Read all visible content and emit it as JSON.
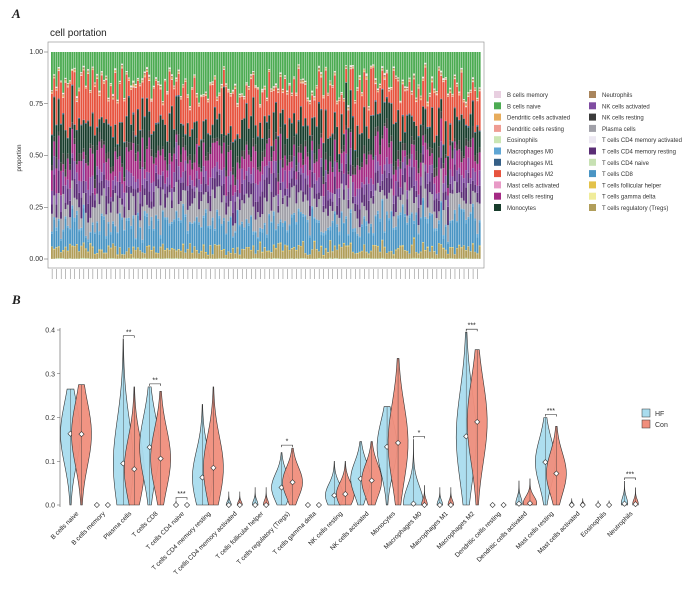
{
  "panelA": {
    "letter": "A",
    "title": "cell portation",
    "ylabel": "proportion",
    "yticks": [
      "0.00",
      "0.25",
      "0.50",
      "0.75",
      "1.00"
    ]
  },
  "panelB": {
    "letter": "B",
    "yticks": [
      "0.0",
      "0.1",
      "0.2",
      "0.3",
      "0.4"
    ]
  },
  "chart_data": [
    {
      "type": "bar",
      "stacked": true,
      "title": "cell portation",
      "xlabel": "",
      "ylabel": "proportion",
      "ylim": [
        0,
        1
      ],
      "n_samples": 190,
      "legend_position": "right",
      "series": [
        {
          "name": "B cells memory",
          "color": "#e8cfe0",
          "mean": 0.002
        },
        {
          "name": "B cells naive",
          "color": "#4cab52",
          "mean": 0.16
        },
        {
          "name": "Dendritic cells activated",
          "color": "#e7ac5c",
          "mean": 0.005
        },
        {
          "name": "Dendritic cells resting",
          "color": "#ef9c93",
          "mean": 0.001
        },
        {
          "name": "Eosinophils",
          "color": "#cbe6b4",
          "mean": 0.001
        },
        {
          "name": "Macrophages M0",
          "color": "#5fa6d4",
          "mean": 0.01
        },
        {
          "name": "Macrophages M1",
          "color": "#355f86",
          "mean": 0.004
        },
        {
          "name": "Macrophages M2",
          "color": "#e7533e",
          "mean": 0.17
        },
        {
          "name": "Mast cells activated",
          "color": "#e89ac6",
          "mean": 0.001
        },
        {
          "name": "Mast cells resting",
          "color": "#a42a84",
          "mean": 0.09
        },
        {
          "name": "Monocytes",
          "color": "#183d2c",
          "mean": 0.14
        },
        {
          "name": "Neutrophils",
          "color": "#a9855c",
          "mean": 0.005
        },
        {
          "name": "NK cells activated",
          "color": "#7f4ca1",
          "mean": 0.06
        },
        {
          "name": "NK cells resting",
          "color": "#3b3b3b",
          "mean": 0.03
        },
        {
          "name": "Plasma cells",
          "color": "#a0a0a8",
          "mean": 0.1
        },
        {
          "name": "T cells CD4 memory activated",
          "color": "#ece8f2",
          "mean": 0.003
        },
        {
          "name": "T cells CD4 memory resting",
          "color": "#5a2d75",
          "mean": 0.07
        },
        {
          "name": "T cells CD4 naive",
          "color": "#c7e1b3",
          "mean": 0.003
        },
        {
          "name": "T cells CD8",
          "color": "#4a95c4",
          "mean": 0.12
        },
        {
          "name": "T cells follicular helper",
          "color": "#e3c24a",
          "mean": 0.003
        },
        {
          "name": "T cells gamma delta",
          "color": "#f0ec9a",
          "mean": 0.001
        },
        {
          "name": "T cells regulatory (Tregs)",
          "color": "#b19e5a",
          "mean": 0.045
        }
      ]
    },
    {
      "type": "violin",
      "xlabel": "",
      "ylabel": "",
      "ylim": [
        0,
        0.42
      ],
      "legend_position": "right",
      "groups": [
        {
          "name": "HF",
          "color": "#a9dcee"
        },
        {
          "name": "Con",
          "color": "#f08e7c"
        }
      ],
      "categories": [
        {
          "name": "B cells naive",
          "HF": {
            "min": 0.0,
            "max": 0.265,
            "median": 0.163
          },
          "Con": {
            "min": 0.0,
            "max": 0.275,
            "median": 0.162
          },
          "sig": ""
        },
        {
          "name": "B cells memory",
          "HF": {
            "min": 0.0,
            "max": 0.0,
            "median": 0.0
          },
          "Con": {
            "min": 0.0,
            "max": 0.0,
            "median": 0.0
          },
          "sig": ""
        },
        {
          "name": "Plasma cells",
          "HF": {
            "min": 0.0,
            "max": 0.38,
            "median": 0.095
          },
          "Con": {
            "min": 0.0,
            "max": 0.27,
            "median": 0.082
          },
          "sig": "**"
        },
        {
          "name": "T cells CD8",
          "HF": {
            "min": 0.0,
            "max": 0.27,
            "median": 0.132
          },
          "Con": {
            "min": 0.0,
            "max": 0.26,
            "median": 0.106
          },
          "sig": "**"
        },
        {
          "name": "T cells CD4 naive",
          "HF": {
            "min": 0.0,
            "max": 0.01,
            "median": 0.0
          },
          "Con": {
            "min": 0.0,
            "max": 0.005,
            "median": 0.0
          },
          "sig": "***"
        },
        {
          "name": "T cells CD4 memory resting",
          "HF": {
            "min": 0.0,
            "max": 0.23,
            "median": 0.063
          },
          "Con": {
            "min": 0.0,
            "max": 0.27,
            "median": 0.085
          },
          "sig": ""
        },
        {
          "name": "T cells CD4 memory activated",
          "HF": {
            "min": 0.0,
            "max": 0.03,
            "median": 0.0
          },
          "Con": {
            "min": 0.0,
            "max": 0.03,
            "median": 0.0
          },
          "sig": ""
        },
        {
          "name": "T cells follicular helper",
          "HF": {
            "min": 0.0,
            "max": 0.04,
            "median": 0.0
          },
          "Con": {
            "min": 0.0,
            "max": 0.04,
            "median": 0.0
          },
          "sig": ""
        },
        {
          "name": "T cells regulatory (Tregs)",
          "HF": {
            "min": 0.0,
            "max": 0.12,
            "median": 0.04
          },
          "Con": {
            "min": 0.0,
            "max": 0.13,
            "median": 0.052
          },
          "sig": "*"
        },
        {
          "name": "T cells gamma delta",
          "HF": {
            "min": 0.0,
            "max": 0.0,
            "median": 0.0
          },
          "Con": {
            "min": 0.0,
            "max": 0.0,
            "median": 0.0
          },
          "sig": ""
        },
        {
          "name": "NK cells resting",
          "HF": {
            "min": 0.0,
            "max": 0.1,
            "median": 0.022
          },
          "Con": {
            "min": 0.0,
            "max": 0.1,
            "median": 0.025
          },
          "sig": ""
        },
        {
          "name": "NK cells activated",
          "HF": {
            "min": 0.0,
            "max": 0.145,
            "median": 0.06
          },
          "Con": {
            "min": 0.0,
            "max": 0.145,
            "median": 0.056
          },
          "sig": ""
        },
        {
          "name": "Monocytes",
          "HF": {
            "min": 0.0,
            "max": 0.225,
            "median": 0.133
          },
          "Con": {
            "min": 0.0,
            "max": 0.335,
            "median": 0.142
          },
          "sig": ""
        },
        {
          "name": "Macrophages M0",
          "HF": {
            "min": 0.0,
            "max": 0.15,
            "median": 0.003
          },
          "Con": {
            "min": 0.0,
            "max": 0.045,
            "median": 0.0
          },
          "sig": "*"
        },
        {
          "name": "Macrophages M1",
          "HF": {
            "min": 0.0,
            "max": 0.04,
            "median": 0.0
          },
          "Con": {
            "min": 0.0,
            "max": 0.04,
            "median": 0.0
          },
          "sig": ""
        },
        {
          "name": "Macrophages M2",
          "HF": {
            "min": 0.0,
            "max": 0.395,
            "median": 0.157
          },
          "Con": {
            "min": 0.0,
            "max": 0.355,
            "median": 0.19
          },
          "sig": "***"
        },
        {
          "name": "Dendritic cells resting",
          "HF": {
            "min": 0.0,
            "max": 0.0,
            "median": 0.0
          },
          "Con": {
            "min": 0.0,
            "max": 0.0,
            "median": 0.0
          },
          "sig": ""
        },
        {
          "name": "Dendritic cells activated",
          "HF": {
            "min": 0.0,
            "max": 0.055,
            "median": 0.003
          },
          "Con": {
            "min": 0.0,
            "max": 0.06,
            "median": 0.004
          },
          "sig": ""
        },
        {
          "name": "Mast cells resting",
          "HF": {
            "min": 0.0,
            "max": 0.2,
            "median": 0.098
          },
          "Con": {
            "min": 0.0,
            "max": 0.18,
            "median": 0.072
          },
          "sig": "***"
        },
        {
          "name": "Mast cells activated",
          "HF": {
            "min": 0.0,
            "max": 0.015,
            "median": 0.0
          },
          "Con": {
            "min": 0.0,
            "max": 0.015,
            "median": 0.0
          },
          "sig": ""
        },
        {
          "name": "Eosinophils",
          "HF": {
            "min": 0.0,
            "max": 0.01,
            "median": 0.0
          },
          "Con": {
            "min": 0.0,
            "max": 0.01,
            "median": 0.0
          },
          "sig": ""
        },
        {
          "name": "Neutrophils",
          "HF": {
            "min": 0.0,
            "max": 0.055,
            "median": 0.003
          },
          "Con": {
            "min": 0.0,
            "max": 0.04,
            "median": 0.002
          },
          "sig": "***"
        }
      ]
    }
  ]
}
